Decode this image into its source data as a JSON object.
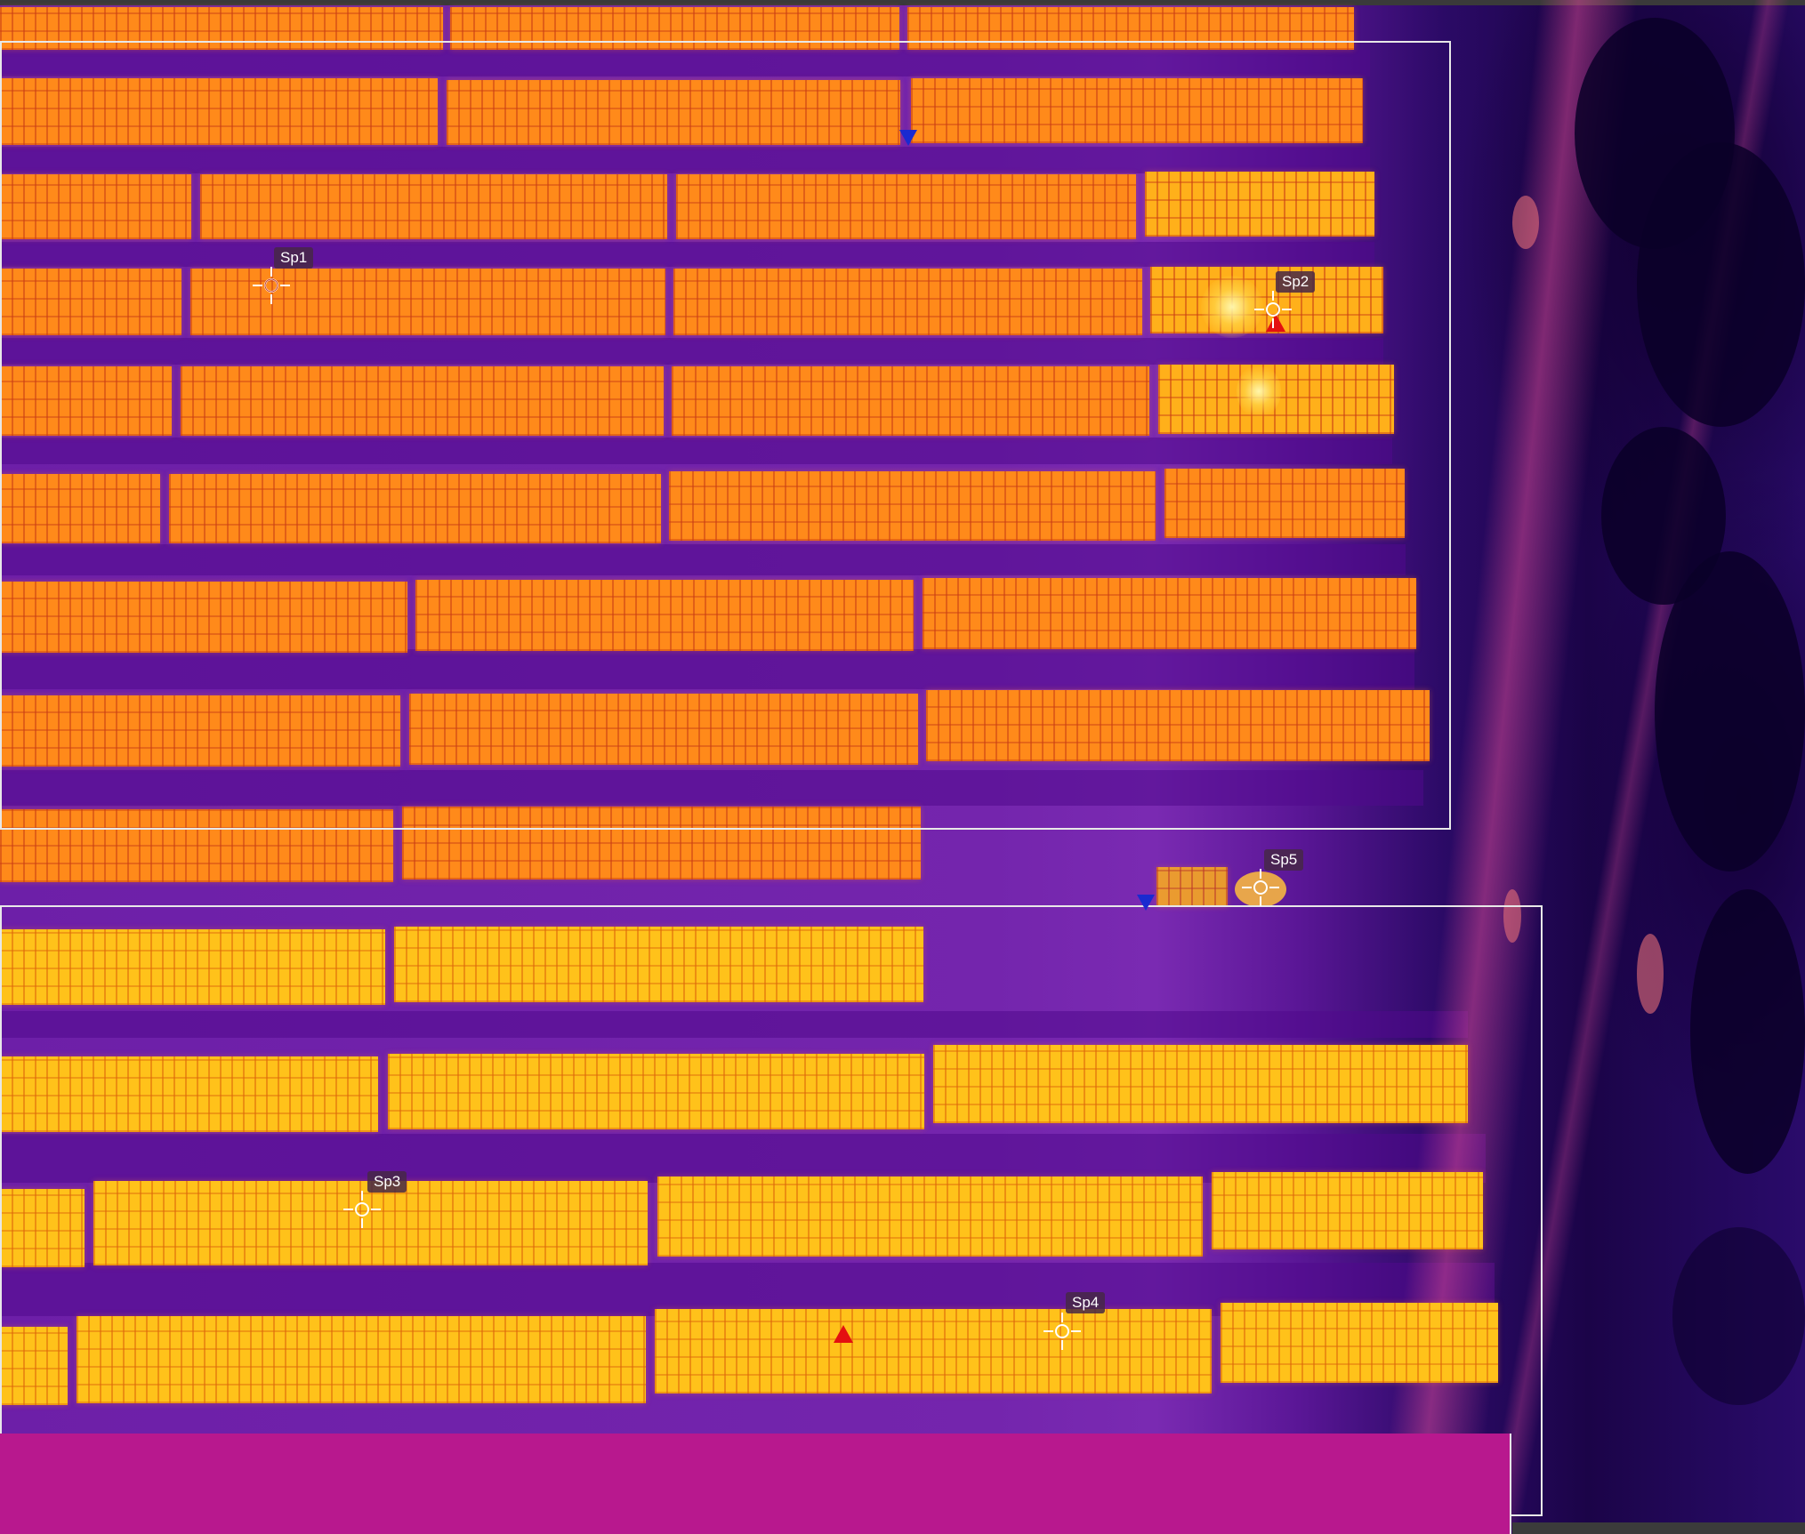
{
  "window": {
    "title": ""
  },
  "spots": [
    {
      "id": "Sp1",
      "label": "Sp1"
    },
    {
      "id": "Sp2",
      "label": "Sp2"
    },
    {
      "id": "Sp3",
      "label": "Sp3"
    },
    {
      "id": "Sp4",
      "label": "Sp4"
    },
    {
      "id": "Sp5",
      "label": "Sp5"
    }
  ],
  "markers": {
    "cold_marker_icon": "down-triangle-blue",
    "hot_marker_icon": "up-triangle-red"
  },
  "palette": {
    "name": "iron",
    "cold": "#1b0448",
    "ground": "#7425ad",
    "panel": "#ff8a1a",
    "hot": "#ffc21a",
    "cold_marker": "#1a2ad0",
    "hot_marker": "#e41010",
    "box_outline": "#e8e8e8"
  }
}
